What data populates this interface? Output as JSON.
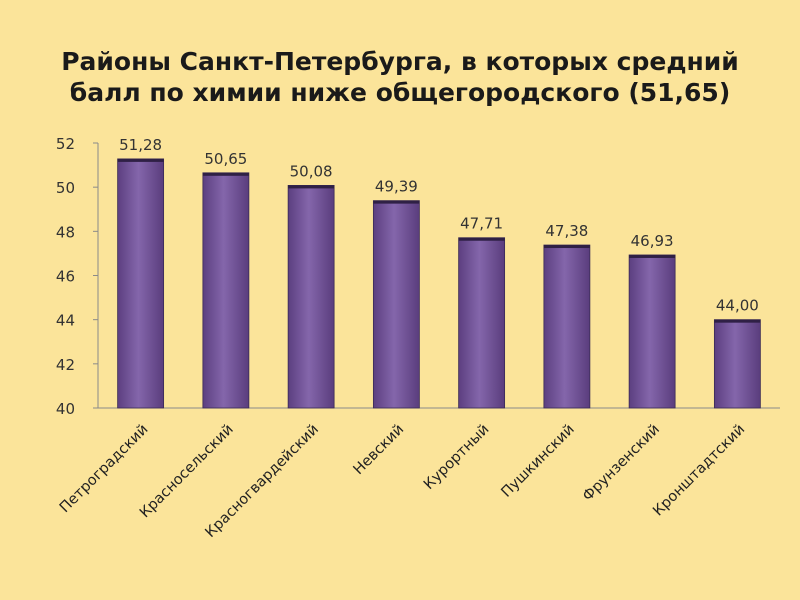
{
  "chart_data": {
    "type": "bar",
    "title": "Районы Санкт-Петербурга, в которых средний балл по химии ниже общегородского (51,65)",
    "categories": [
      "Петроградский",
      "Красносельский",
      "Красногвардейский",
      "Невский",
      "Курортный",
      "Пушкинский",
      "Фрунзенский",
      "Кронштадтский"
    ],
    "values": [
      51.28,
      50.65,
      50.08,
      49.39,
      47.71,
      47.38,
      46.93,
      44.0
    ],
    "data_labels": [
      "51,28",
      "50,65",
      "50,08",
      "49,39",
      "47,71",
      "47,38",
      "46,93",
      "44,00"
    ],
    "ylim": [
      40,
      52
    ],
    "yticks": [
      40,
      42,
      44,
      46,
      48,
      50,
      52
    ],
    "grid": false,
    "legend": "none",
    "bar_color": "#7a5aa0",
    "bar_edge_color": "#3a2a55",
    "background_color": "#fbe49a"
  }
}
